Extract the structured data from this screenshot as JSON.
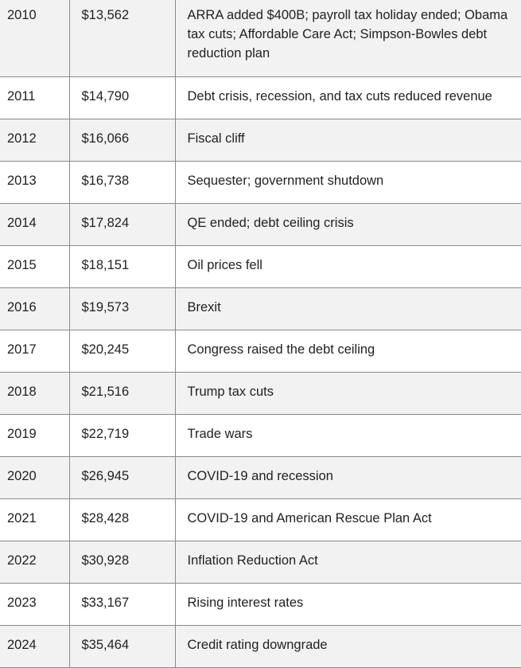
{
  "table": {
    "rows": [
      [
        "2010",
        "$13,562",
        "ARRA added $400B; payroll tax holiday ended; Obama tax cuts; Affordable Care Act; Simpson-Bowles debt reduction plan"
      ],
      [
        "2011",
        "$14,790",
        "Debt crisis, recession, and tax cuts reduced revenue"
      ],
      [
        "2012",
        "$16,066",
        "Fiscal cliff"
      ],
      [
        "2013",
        "$16,738",
        "Sequester; government shutdown"
      ],
      [
        "2014",
        "$17,824",
        "QE ended; debt ceiling crisis"
      ],
      [
        "2015",
        "$18,151",
        "Oil prices fell"
      ],
      [
        "2016",
        "$19,573",
        "Brexit"
      ],
      [
        "2017",
        "$20,245",
        "Congress raised the debt ceiling"
      ],
      [
        "2018",
        "$21,516",
        "Trump tax cuts"
      ],
      [
        "2019",
        "$22,719",
        "Trade wars"
      ],
      [
        "2020",
        "$26,945",
        "COVID-19 and recession"
      ],
      [
        "2021",
        "$28,428",
        "COVID-19 and American Rescue Plan Act"
      ],
      [
        "2022",
        "$30,928",
        "Inflation Reduction Act"
      ],
      [
        "2023",
        "$33,167",
        "Rising interest rates"
      ],
      [
        "2024",
        "$35,464",
        "Credit rating downgrade"
      ]
    ]
  }
}
